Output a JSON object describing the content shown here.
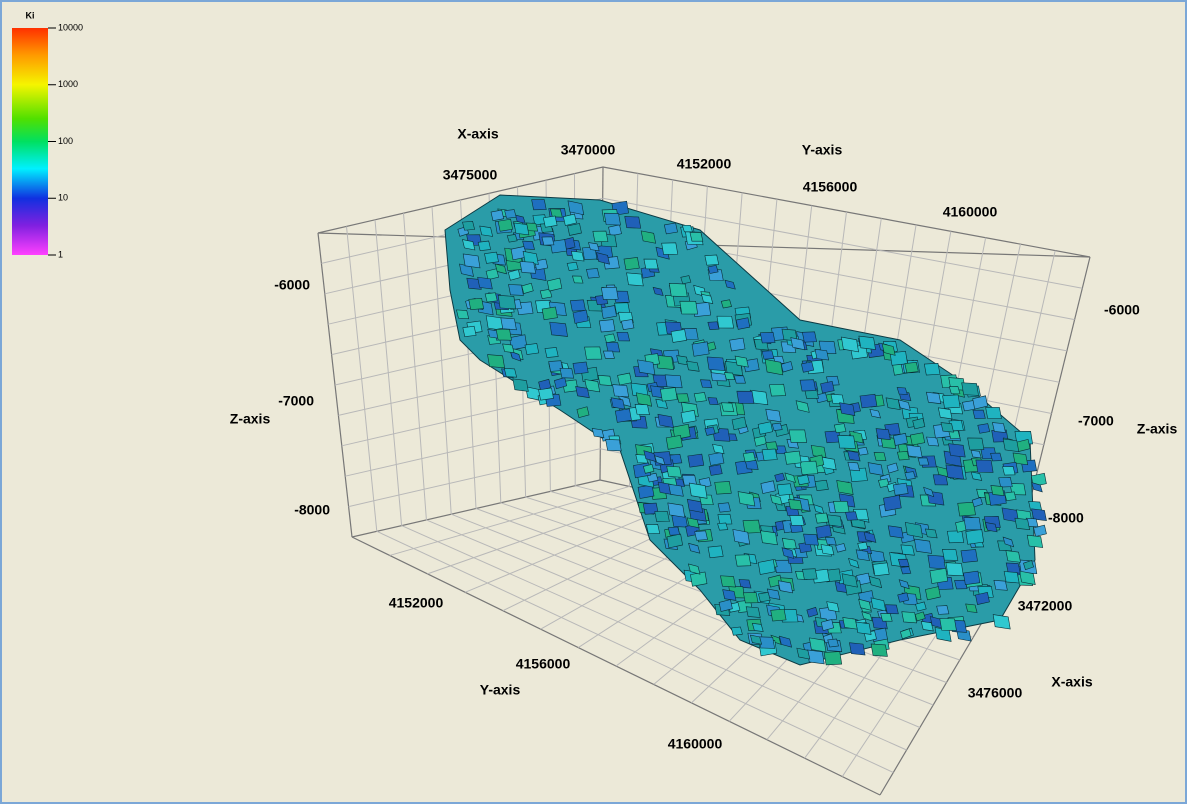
{
  "colorbar": {
    "title": "Ki",
    "ticks": [
      "10000",
      "1000",
      "100",
      "10",
      "1"
    ]
  },
  "axes": {
    "x_axis_top": {
      "label": "X-axis",
      "ticks": [
        "3470000",
        "3475000"
      ]
    },
    "y_axis_top": {
      "label": "Y-axis",
      "ticks": [
        "4152000",
        "4156000",
        "4160000"
      ]
    },
    "z_axis_left": {
      "label": "Z-axis",
      "ticks": [
        "-6000",
        "-7000",
        "-8000"
      ]
    },
    "z_axis_right": {
      "label": "Z-axis",
      "ticks": [
        "-6000",
        "-7000",
        "-8000"
      ]
    },
    "y_axis_bottom": {
      "label": "Y-axis",
      "ticks": [
        "4152000",
        "4156000",
        "4160000"
      ]
    },
    "x_axis_bottom": {
      "label": "X-axis",
      "ticks": [
        "3472000",
        "3476000"
      ]
    }
  }
}
